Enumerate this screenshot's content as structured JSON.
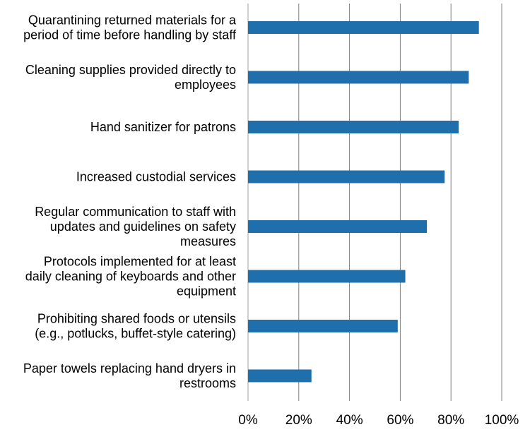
{
  "chart_data": {
    "type": "bar",
    "orientation": "horizontal",
    "categories": [
      [
        "Quarantining returned materials for a",
        "period of time before handling by staff"
      ],
      [
        "Cleaning supplies provided directly to",
        "employees"
      ],
      [
        "Hand sanitizer for patrons"
      ],
      [
        "Increased custodial services"
      ],
      [
        "Regular communication to staff with",
        "updates and guidelines on safety",
        "measures"
      ],
      [
        "Protocols implemented for at least",
        "daily cleaning of keyboards and other",
        "equipment"
      ],
      [
        "Prohibiting shared foods or utensils",
        "(e.g., potlucks, buffet-style catering)"
      ],
      [
        "Paper towels replacing hand dryers in",
        "restrooms"
      ]
    ],
    "values": [
      91,
      87,
      83,
      77.5,
      70.5,
      62,
      59,
      25
    ],
    "xlim": [
      0,
      100
    ],
    "xticks": [
      "0%",
      "20%",
      "40%",
      "60%",
      "80%",
      "100%"
    ],
    "grid": true,
    "bar_color": "#1f6fad",
    "grid_color": "#808080"
  }
}
